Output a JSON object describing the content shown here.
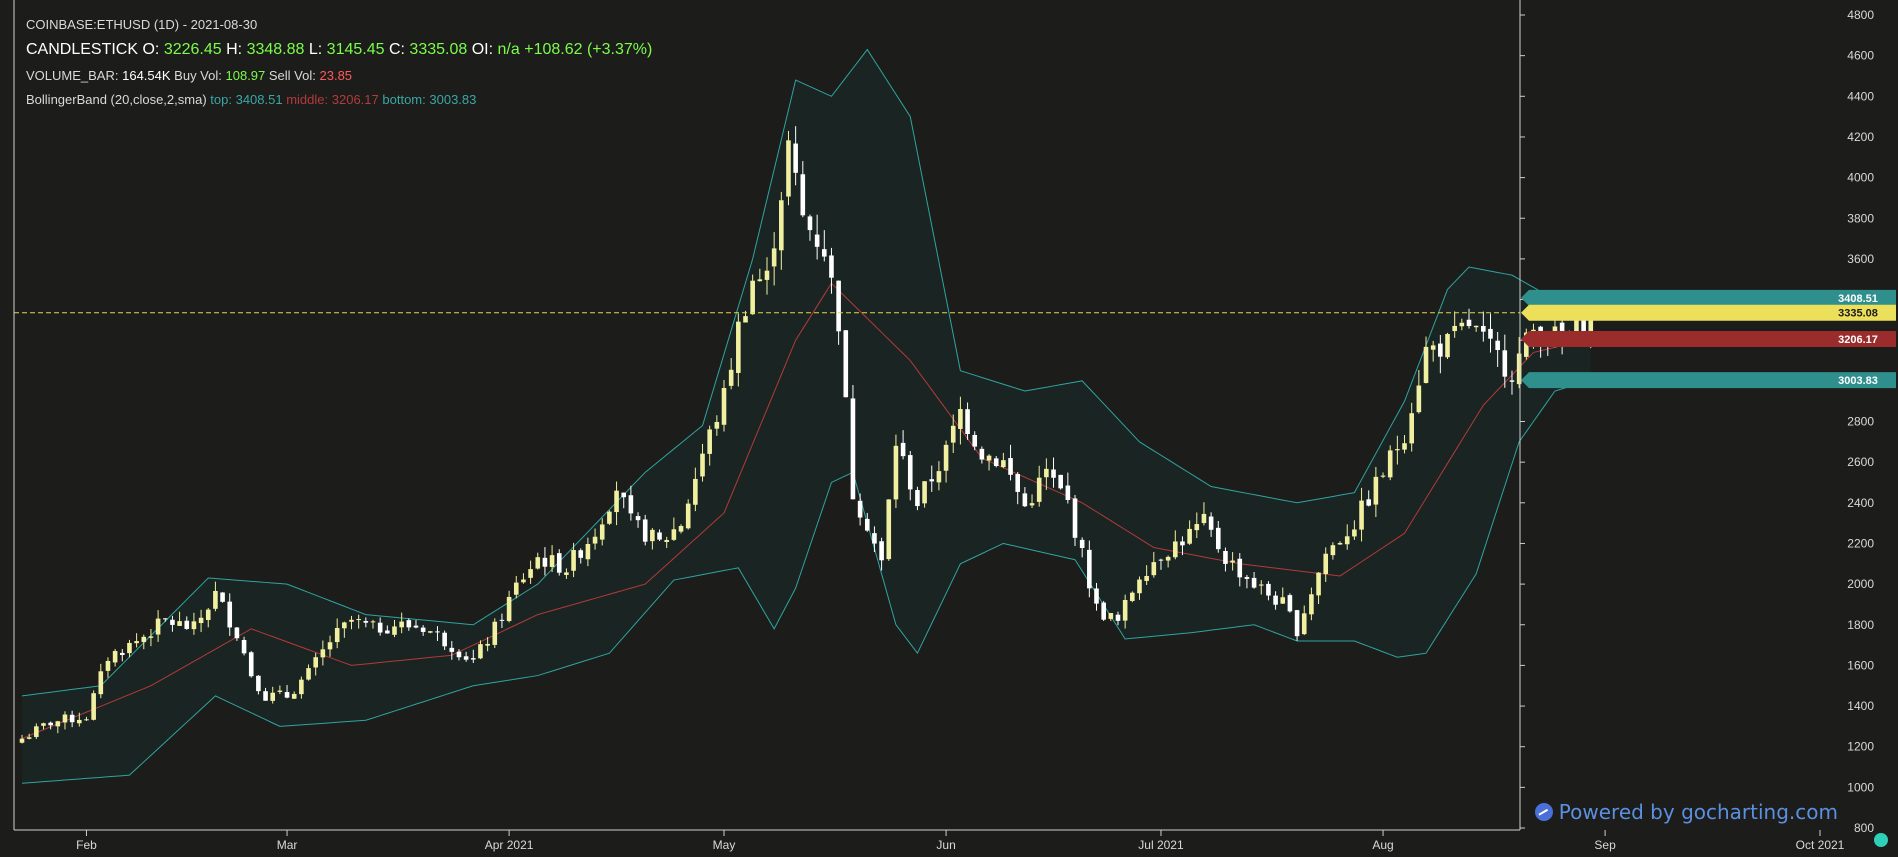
{
  "header": {
    "symbol_line": "COINBASE:ETHUSD (1D) - 2021-08-30",
    "candle_label": "CANDLESTICK",
    "o_label": "O:",
    "o_val": "3226.45",
    "h_label": "H:",
    "h_val": "3348.88",
    "l_label": "L:",
    "l_val": "3145.45",
    "c_label": "C:",
    "c_val": "3335.08",
    "oi_label": "OI:",
    "oi_val": "n/a",
    "change": "+108.62",
    "change_pct": "(+3.37%)",
    "volume_label": "VOLUME_BAR:",
    "volume_val": "164.54K",
    "buy_label": "Buy Vol:",
    "buy_val": "108.97",
    "sell_label": "Sell Vol:",
    "sell_val": "23.85",
    "bb_label": "BollingerBand (20,close,2,sma)",
    "bb_top_label": "top:",
    "bb_top_val": "3408.51",
    "bb_mid_label": "middle:",
    "bb_mid_val": "3206.17",
    "bb_bot_label": "bottom:",
    "bb_bot_val": "3003.83"
  },
  "watermark": {
    "text": "Powered by gocharting.com"
  },
  "colors": {
    "background": "#1c1c1a",
    "candle_up": "#f1f0a0",
    "candle_down": "#ffffff",
    "band_line": "#2fa5a0",
    "band_fill": "#1a2624",
    "middle_line": "#b33a3a",
    "last_price_line": "#e7d44a",
    "axis_text": "#d9d9d9"
  },
  "chart_data": {
    "type": "candlestick",
    "symbol": "COINBASE:ETHUSD",
    "interval": "1D",
    "ylim": [
      800,
      4800
    ],
    "y_ticks": [
      800,
      1000,
      1200,
      1400,
      1600,
      1800,
      2000,
      2200,
      2400,
      2600,
      2800,
      3000,
      3200,
      3400,
      3600,
      3800,
      4000,
      4200,
      4400,
      4600,
      4800
    ],
    "y_tick_labels": [
      "800",
      "1000",
      "1200",
      "1400",
      "1600",
      "1800",
      "2000",
      "2200",
      "2400",
      "2600",
      "2800",
      "3000",
      "3200",
      "3400",
      "3600",
      "3800",
      "4000",
      "4200",
      "4400",
      "4600",
      "4800"
    ],
    "x_ticks": [
      {
        "label": "Feb",
        "date": "2021-02-01"
      },
      {
        "label": "Mar",
        "date": "2021-03-01"
      },
      {
        "label": "Apr 2021",
        "date": "2021-04-01"
      },
      {
        "label": "May",
        "date": "2021-05-01"
      },
      {
        "label": "Jun",
        "date": "2021-06-01"
      },
      {
        "label": "Jul 2021",
        "date": "2021-07-01"
      },
      {
        "label": "Aug",
        "date": "2021-08-01"
      },
      {
        "label": "Sep",
        "date": "2021-09-01"
      },
      {
        "label": "Oct 2021",
        "date": "2021-10-01"
      }
    ],
    "x_range": [
      "2021-01-23",
      "2021-10-01"
    ],
    "last_price": 3335.08,
    "price_tags": [
      {
        "label": "3408.51",
        "value": 3408.51,
        "color": "#2e8f8c"
      },
      {
        "label": "3335.08",
        "value": 3335.08,
        "color": "#ece05a"
      },
      {
        "label": "3206.17",
        "value": 3206.17,
        "color": "#9b2c2c"
      },
      {
        "label": "3003.83",
        "value": 3003.83,
        "color": "#2e8f8c"
      }
    ],
    "close_anchors": [
      [
        "2021-01-23",
        1240
      ],
      [
        "2021-01-27",
        1320
      ],
      [
        "2021-02-01",
        1350
      ],
      [
        "2021-02-04",
        1640
      ],
      [
        "2021-02-08",
        1720
      ],
      [
        "2021-02-12",
        1820
      ],
      [
        "2021-02-16",
        1780
      ],
      [
        "2021-02-19",
        1950
      ],
      [
        "2021-02-22",
        1760
      ],
      [
        "2021-02-24",
        1560
      ],
      [
        "2021-02-26",
        1450
      ],
      [
        "2021-03-01",
        1450
      ],
      [
        "2021-03-04",
        1560
      ],
      [
        "2021-03-07",
        1720
      ],
      [
        "2021-03-10",
        1820
      ],
      [
        "2021-03-13",
        1780
      ],
      [
        "2021-03-16",
        1800
      ],
      [
        "2021-03-20",
        1790
      ],
      [
        "2021-03-24",
        1700
      ],
      [
        "2021-03-27",
        1620
      ],
      [
        "2021-03-30",
        1780
      ],
      [
        "2021-04-02",
        1990
      ],
      [
        "2021-04-05",
        2130
      ],
      [
        "2021-04-09",
        2080
      ],
      [
        "2021-04-13",
        2260
      ],
      [
        "2021-04-16",
        2480
      ],
      [
        "2021-04-18",
        2300
      ],
      [
        "2021-04-22",
        2200
      ],
      [
        "2021-04-25",
        2300
      ],
      [
        "2021-04-28",
        2640
      ],
      [
        "2021-05-01",
        2920
      ],
      [
        "2021-05-03",
        3260
      ],
      [
        "2021-05-05",
        3500
      ],
      [
        "2021-05-07",
        3500
      ],
      [
        "2021-05-10",
        4150
      ],
      [
        "2021-05-12",
        3800
      ],
      [
        "2021-05-15",
        3650
      ],
      [
        "2021-05-17",
        3300
      ],
      [
        "2021-05-19",
        2450
      ],
      [
        "2021-05-21",
        2300
      ],
      [
        "2021-05-23",
        2100
      ],
      [
        "2021-05-25",
        2700
      ],
      [
        "2021-05-28",
        2400
      ],
      [
        "2021-06-01",
        2650
      ],
      [
        "2021-06-03",
        2850
      ],
      [
        "2021-06-06",
        2650
      ],
      [
        "2021-06-09",
        2600
      ],
      [
        "2021-06-12",
        2380
      ],
      [
        "2021-06-15",
        2550
      ],
      [
        "2021-06-18",
        2400
      ],
      [
        "2021-06-22",
        1880
      ],
      [
        "2021-06-25",
        1810
      ],
      [
        "2021-06-28",
        2050
      ],
      [
        "2021-07-01",
        2150
      ],
      [
        "2021-07-04",
        2220
      ],
      [
        "2021-07-07",
        2300
      ],
      [
        "2021-07-10",
        2130
      ],
      [
        "2021-07-14",
        2000
      ],
      [
        "2021-07-18",
        1900
      ],
      [
        "2021-07-20",
        1780
      ],
      [
        "2021-07-24",
        2150
      ],
      [
        "2021-07-28",
        2300
      ],
      [
        "2021-08-01",
        2550
      ],
      [
        "2021-08-04",
        2750
      ],
      [
        "2021-08-07",
        3150
      ],
      [
        "2021-08-10",
        3180
      ],
      [
        "2021-08-13",
        3280
      ],
      [
        "2021-08-16",
        3150
      ],
      [
        "2021-08-19",
        3050
      ],
      [
        "2021-08-22",
        3250
      ],
      [
        "2021-08-26",
        3200
      ],
      [
        "2021-08-30",
        3335
      ]
    ],
    "bollinger": {
      "period": 20,
      "stddev": 2,
      "source": "close",
      "ma": "sma",
      "top_anchors": [
        [
          "2021-01-23",
          1450
        ],
        [
          "2021-02-03",
          1500
        ],
        [
          "2021-02-18",
          2030
        ],
        [
          "2021-03-01",
          2000
        ],
        [
          "2021-03-12",
          1850
        ],
        [
          "2021-03-27",
          1800
        ],
        [
          "2021-04-05",
          2000
        ],
        [
          "2021-04-20",
          2550
        ],
        [
          "2021-04-28",
          2780
        ],
        [
          "2021-05-05",
          3600
        ],
        [
          "2021-05-11",
          4480
        ],
        [
          "2021-05-16",
          4400
        ],
        [
          "2021-05-21",
          4630
        ],
        [
          "2021-05-27",
          4300
        ],
        [
          "2021-06-03",
          3050
        ],
        [
          "2021-06-12",
          2950
        ],
        [
          "2021-06-20",
          3000
        ],
        [
          "2021-06-28",
          2700
        ],
        [
          "2021-07-08",
          2480
        ],
        [
          "2021-07-20",
          2400
        ],
        [
          "2021-07-28",
          2450
        ],
        [
          "2021-08-04",
          2900
        ],
        [
          "2021-08-10",
          3450
        ],
        [
          "2021-08-13",
          3560
        ],
        [
          "2021-08-19",
          3520
        ],
        [
          "2021-08-25",
          3400
        ],
        [
          "2021-08-30",
          3410
        ]
      ],
      "middle_anchors": [
        [
          "2021-01-23",
          1240
        ],
        [
          "2021-02-10",
          1500
        ],
        [
          "2021-02-24",
          1780
        ],
        [
          "2021-03-10",
          1600
        ],
        [
          "2021-03-24",
          1650
        ],
        [
          "2021-04-05",
          1850
        ],
        [
          "2021-04-20",
          2000
        ],
        [
          "2021-05-01",
          2350
        ],
        [
          "2021-05-11",
          3200
        ],
        [
          "2021-05-16",
          3480
        ],
        [
          "2021-05-27",
          3100
        ],
        [
          "2021-06-06",
          2620
        ],
        [
          "2021-06-20",
          2400
        ],
        [
          "2021-06-30",
          2180
        ],
        [
          "2021-07-12",
          2100
        ],
        [
          "2021-07-26",
          2040
        ],
        [
          "2021-08-04",
          2250
        ],
        [
          "2021-08-15",
          2880
        ],
        [
          "2021-08-22",
          3140
        ],
        [
          "2021-08-30",
          3206
        ]
      ],
      "bottom_anchors": [
        [
          "2021-01-23",
          1020
        ],
        [
          "2021-02-07",
          1060
        ],
        [
          "2021-02-19",
          1450
        ],
        [
          "2021-02-28",
          1300
        ],
        [
          "2021-03-12",
          1330
        ],
        [
          "2021-03-27",
          1500
        ],
        [
          "2021-04-05",
          1550
        ],
        [
          "2021-04-15",
          1660
        ],
        [
          "2021-04-24",
          2020
        ],
        [
          "2021-05-03",
          2080
        ],
        [
          "2021-05-08",
          1780
        ],
        [
          "2021-05-11",
          1980
        ],
        [
          "2021-05-16",
          2500
        ],
        [
          "2021-05-19",
          2550
        ],
        [
          "2021-05-25",
          1800
        ],
        [
          "2021-05-28",
          1660
        ],
        [
          "2021-06-03",
          2100
        ],
        [
          "2021-06-09",
          2200
        ],
        [
          "2021-06-19",
          2120
        ],
        [
          "2021-06-26",
          1730
        ],
        [
          "2021-07-05",
          1760
        ],
        [
          "2021-07-14",
          1800
        ],
        [
          "2021-07-20",
          1720
        ],
        [
          "2021-07-28",
          1720
        ],
        [
          "2021-08-03",
          1640
        ],
        [
          "2021-08-07",
          1660
        ],
        [
          "2021-08-14",
          2050
        ],
        [
          "2021-08-20",
          2700
        ],
        [
          "2021-08-25",
          2950
        ],
        [
          "2021-08-30",
          3003
        ]
      ]
    }
  }
}
